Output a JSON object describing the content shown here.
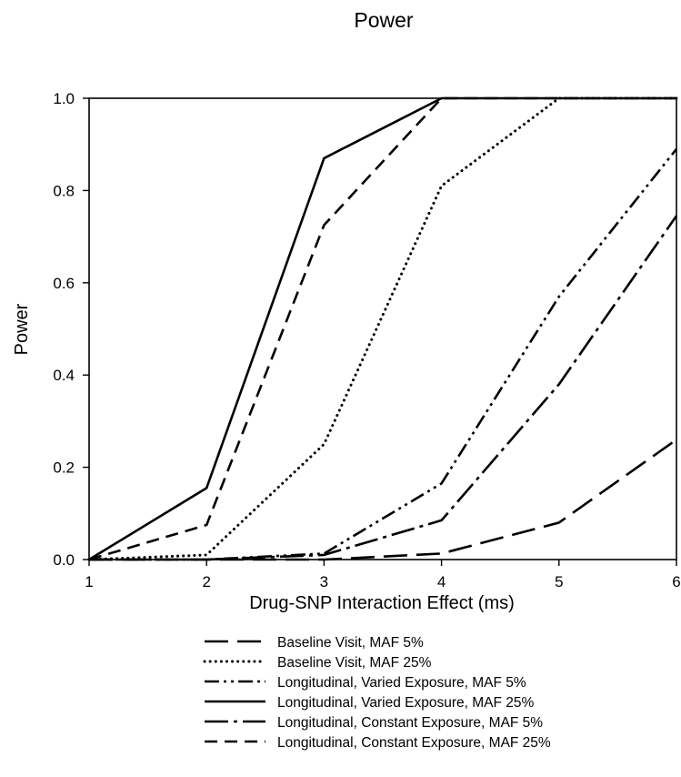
{
  "chart_data": {
    "type": "line",
    "title": "Power",
    "xlabel": "Drug-SNP Interaction Effect (ms)",
    "ylabel": "Power",
    "xlim": [
      1,
      6
    ],
    "ylim": [
      0,
      1.0
    ],
    "x_ticks": [
      "1",
      "2",
      "3",
      "4",
      "5",
      "6"
    ],
    "y_ticks": [
      "0.0",
      "0.2",
      "0.4",
      "0.6",
      "0.8",
      "1.0"
    ],
    "grid": false,
    "legend_position": "bottom",
    "x": [
      1,
      2,
      3,
      4,
      5,
      6
    ],
    "series": [
      {
        "name": "Baseline Visit, MAF 5%",
        "style": "long-dash",
        "values": [
          0.0,
          0.0,
          0.0,
          0.013,
          0.08,
          0.26
        ]
      },
      {
        "name": "Baseline Visit, MAF 25%",
        "style": "dotted",
        "values": [
          0.0,
          0.01,
          0.25,
          0.81,
          1.0,
          1.0
        ]
      },
      {
        "name": "Longitudinal, Varied Exposure, MAF 5%",
        "style": "dash-dot-dot",
        "values": [
          0.0,
          0.0,
          0.013,
          0.165,
          0.57,
          0.89
        ]
      },
      {
        "name": "Longitudinal, Varied Exposure, MAF 25%",
        "style": "solid",
        "values": [
          0.0,
          0.155,
          0.87,
          1.0,
          1.0,
          1.0
        ]
      },
      {
        "name": "Longitudinal, Constant Exposure, MAF 5%",
        "style": "dash-dot",
        "values": [
          0.0,
          0.0,
          0.01,
          0.085,
          0.38,
          0.745
        ]
      },
      {
        "name": "Longitudinal, Constant Exposure, MAF 25%",
        "style": "medium-dash",
        "values": [
          0.0,
          0.075,
          0.725,
          1.0,
          1.0,
          1.0
        ]
      }
    ]
  }
}
